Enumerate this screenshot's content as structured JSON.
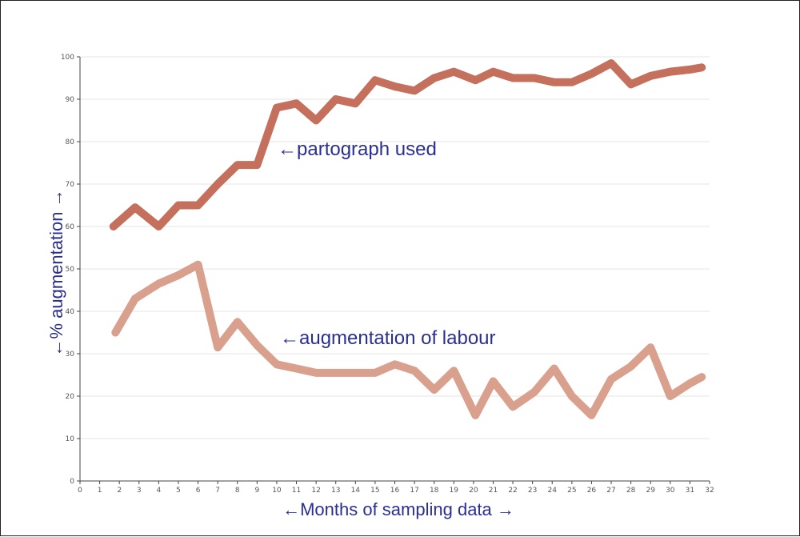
{
  "chart_data": {
    "type": "line",
    "title": "",
    "xlabel": "←Months of sampling data →",
    "ylabel": "←% augmentation →",
    "xlim": [
      0,
      32
    ],
    "ylim": [
      0,
      100
    ],
    "x_ticks": [
      0,
      1,
      2,
      3,
      4,
      5,
      6,
      7,
      8,
      9,
      10,
      11,
      12,
      13,
      14,
      15,
      16,
      17,
      18,
      19,
      20,
      21,
      22,
      23,
      24,
      25,
      26,
      27,
      28,
      29,
      30,
      31,
      32
    ],
    "y_ticks": [
      0,
      10,
      20,
      30,
      40,
      50,
      60,
      70,
      80,
      90,
      100
    ],
    "grid": "horizontal",
    "legend": "none",
    "series": [
      {
        "name": "←partograph used",
        "color": "#c4705c",
        "x": [
          1.7,
          2.8,
          4.0,
          5.0,
          6.0,
          7.0,
          8.0,
          9.0,
          10.0,
          11.0,
          12.0,
          13.0,
          14.0,
          15.0,
          16.0,
          17.0,
          18.0,
          19.0,
          20.1,
          21.0,
          22.0,
          23.1,
          24.1,
          25.0,
          26.0,
          27.0,
          28.0,
          29.0,
          30.0,
          31.0,
          31.6
        ],
        "values": [
          60,
          64.5,
          60,
          65,
          65,
          70,
          74.5,
          74.5,
          88,
          89,
          85,
          90,
          89,
          94.5,
          93,
          92,
          95,
          96.5,
          94.5,
          96.5,
          95,
          95,
          94,
          94,
          96,
          98.5,
          93.5,
          95.5,
          96.5,
          97,
          97.5
        ]
      },
      {
        "name": "←augmentation of labour",
        "color": "#d9a08d",
        "x": [
          1.8,
          2.8,
          4.0,
          5.0,
          6.0,
          7.0,
          8.0,
          9.0,
          10.0,
          11.0,
          12.0,
          13.0,
          14.0,
          15.0,
          16.0,
          17.0,
          18.0,
          19.0,
          20.1,
          21.0,
          22.0,
          23.1,
          24.1,
          25.0,
          26.0,
          27.0,
          28.0,
          29.0,
          30.0,
          31.0,
          31.6
        ],
        "values": [
          35,
          43,
          46.5,
          48.5,
          51,
          31.5,
          37.5,
          32,
          27.5,
          26.5,
          25.5,
          25.5,
          25.5,
          25.5,
          27.5,
          26,
          21.5,
          26,
          15.5,
          23.5,
          17.5,
          21,
          26.5,
          20,
          15.5,
          24,
          27,
          31.5,
          20,
          23,
          24.5
        ]
      }
    ],
    "annotations": [
      {
        "text": "←partograph used",
        "series": 0
      },
      {
        "text": "←augmentation of labour",
        "series": 1
      }
    ]
  }
}
